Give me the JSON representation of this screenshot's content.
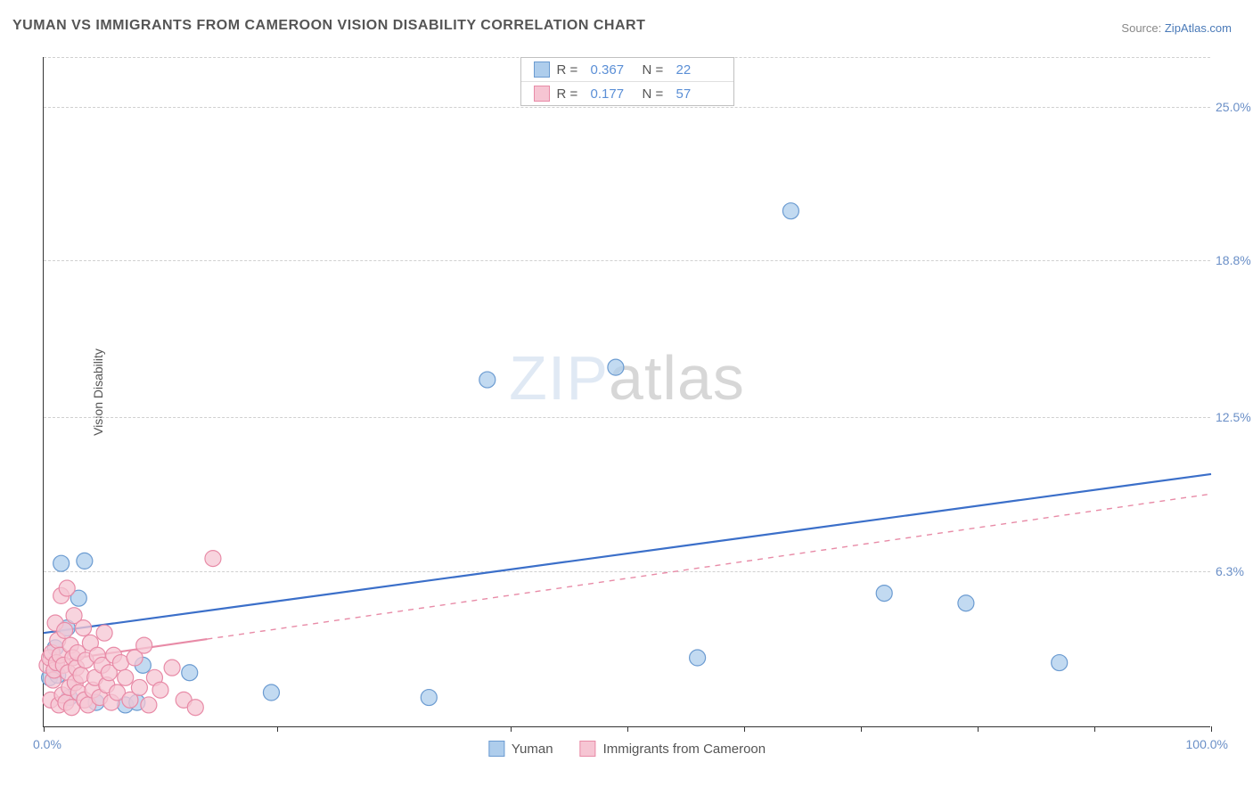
{
  "title": "YUMAN VS IMMIGRANTS FROM CAMEROON VISION DISABILITY CORRELATION CHART",
  "source_label": "Source:",
  "source_value": "ZipAtlas.com",
  "ylabel": "Vision Disability",
  "watermark_a": "ZIP",
  "watermark_b": "atlas",
  "chart": {
    "type": "scatter",
    "xlim": [
      0,
      100
    ],
    "ylim": [
      0,
      27
    ],
    "y_gridlines": [
      6.3,
      12.5,
      18.8,
      25.0,
      27.0
    ],
    "y_ticklabels": [
      "6.3%",
      "12.5%",
      "18.8%",
      "25.0%"
    ],
    "x_tick_positions": [
      0,
      20,
      40,
      50,
      60,
      70,
      80,
      90,
      100
    ],
    "x_min_label": "0.0%",
    "x_max_label": "100.0%",
    "background": "#ffffff",
    "grid_color": "#d0d0d0",
    "axis_color": "#333333",
    "tick_label_color": "#6a8fc7",
    "marker_radius": 9,
    "marker_stroke_width": 1.2,
    "trend_line_width_solid": 2.2,
    "trend_line_width_dash": 1.4
  },
  "series": [
    {
      "name": "Yuman",
      "fill": "#aecdec",
      "stroke": "#6b9bd1",
      "r_label": "R =",
      "r_value": "0.367",
      "n_label": "N =",
      "n_value": "22",
      "trend": {
        "x1": 0,
        "y1": 3.8,
        "x2": 100,
        "y2": 10.2,
        "dash": false,
        "solid_until_x": 100
      },
      "points": [
        {
          "x": 0.5,
          "y": 2.0
        },
        {
          "x": 1.0,
          "y": 3.2
        },
        {
          "x": 1.2,
          "y": 2.1
        },
        {
          "x": 1.5,
          "y": 6.6
        },
        {
          "x": 2.0,
          "y": 4.0
        },
        {
          "x": 2.2,
          "y": 1.2
        },
        {
          "x": 3.0,
          "y": 5.2
        },
        {
          "x": 3.5,
          "y": 6.7
        },
        {
          "x": 4.5,
          "y": 1.0
        },
        {
          "x": 7.0,
          "y": 0.9
        },
        {
          "x": 8.0,
          "y": 1.0
        },
        {
          "x": 8.5,
          "y": 2.5
        },
        {
          "x": 12.5,
          "y": 2.2
        },
        {
          "x": 19.5,
          "y": 1.4
        },
        {
          "x": 33.0,
          "y": 1.2
        },
        {
          "x": 38.0,
          "y": 14.0
        },
        {
          "x": 49.0,
          "y": 14.5
        },
        {
          "x": 56.0,
          "y": 2.8
        },
        {
          "x": 64.0,
          "y": 20.8
        },
        {
          "x": 72.0,
          "y": 5.4
        },
        {
          "x": 79.0,
          "y": 5.0
        },
        {
          "x": 87.0,
          "y": 2.6
        }
      ]
    },
    {
      "name": "Immigrants from Cameroon",
      "fill": "#f6c5d3",
      "stroke": "#e88ba7",
      "r_label": "R =",
      "r_value": "0.177",
      "n_label": "N =",
      "n_value": "57",
      "trend": {
        "x1": 0,
        "y1": 2.6,
        "x2": 100,
        "y2": 9.4,
        "dash": true,
        "solid_until_x": 14
      },
      "points": [
        {
          "x": 0.3,
          "y": 2.5
        },
        {
          "x": 0.5,
          "y": 2.8
        },
        {
          "x": 0.6,
          "y": 1.1
        },
        {
          "x": 0.7,
          "y": 3.0
        },
        {
          "x": 0.8,
          "y": 1.9
        },
        {
          "x": 0.9,
          "y": 2.3
        },
        {
          "x": 1.0,
          "y": 4.2
        },
        {
          "x": 1.1,
          "y": 2.6
        },
        {
          "x": 1.2,
          "y": 3.5
        },
        {
          "x": 1.3,
          "y": 0.9
        },
        {
          "x": 1.4,
          "y": 2.9
        },
        {
          "x": 1.5,
          "y": 5.3
        },
        {
          "x": 1.6,
          "y": 1.3
        },
        {
          "x": 1.7,
          "y": 2.5
        },
        {
          "x": 1.8,
          "y": 3.9
        },
        {
          "x": 1.9,
          "y": 1.0
        },
        {
          "x": 2.0,
          "y": 5.6
        },
        {
          "x": 2.1,
          "y": 2.2
        },
        {
          "x": 2.2,
          "y": 1.6
        },
        {
          "x": 2.3,
          "y": 3.3
        },
        {
          "x": 2.4,
          "y": 0.8
        },
        {
          "x": 2.5,
          "y": 2.8
        },
        {
          "x": 2.6,
          "y": 4.5
        },
        {
          "x": 2.7,
          "y": 1.8
        },
        {
          "x": 2.8,
          "y": 2.4
        },
        {
          "x": 2.9,
          "y": 3.0
        },
        {
          "x": 3.0,
          "y": 1.4
        },
        {
          "x": 3.2,
          "y": 2.1
        },
        {
          "x": 3.4,
          "y": 4.0
        },
        {
          "x": 3.5,
          "y": 1.1
        },
        {
          "x": 3.6,
          "y": 2.7
        },
        {
          "x": 3.8,
          "y": 0.9
        },
        {
          "x": 4.0,
          "y": 3.4
        },
        {
          "x": 4.2,
          "y": 1.5
        },
        {
          "x": 4.4,
          "y": 2.0
        },
        {
          "x": 4.6,
          "y": 2.9
        },
        {
          "x": 4.8,
          "y": 1.2
        },
        {
          "x": 5.0,
          "y": 2.5
        },
        {
          "x": 5.2,
          "y": 3.8
        },
        {
          "x": 5.4,
          "y": 1.7
        },
        {
          "x": 5.6,
          "y": 2.2
        },
        {
          "x": 5.8,
          "y": 1.0
        },
        {
          "x": 6.0,
          "y": 2.9
        },
        {
          "x": 6.3,
          "y": 1.4
        },
        {
          "x": 6.6,
          "y": 2.6
        },
        {
          "x": 7.0,
          "y": 2.0
        },
        {
          "x": 7.4,
          "y": 1.1
        },
        {
          "x": 7.8,
          "y": 2.8
        },
        {
          "x": 8.2,
          "y": 1.6
        },
        {
          "x": 8.6,
          "y": 3.3
        },
        {
          "x": 9.0,
          "y": 0.9
        },
        {
          "x": 9.5,
          "y": 2.0
        },
        {
          "x": 10.0,
          "y": 1.5
        },
        {
          "x": 11.0,
          "y": 2.4
        },
        {
          "x": 12.0,
          "y": 1.1
        },
        {
          "x": 13.0,
          "y": 0.8
        },
        {
          "x": 14.5,
          "y": 6.8
        }
      ]
    }
  ],
  "legend_bottom": [
    "Yuman",
    "Immigrants from Cameroon"
  ]
}
